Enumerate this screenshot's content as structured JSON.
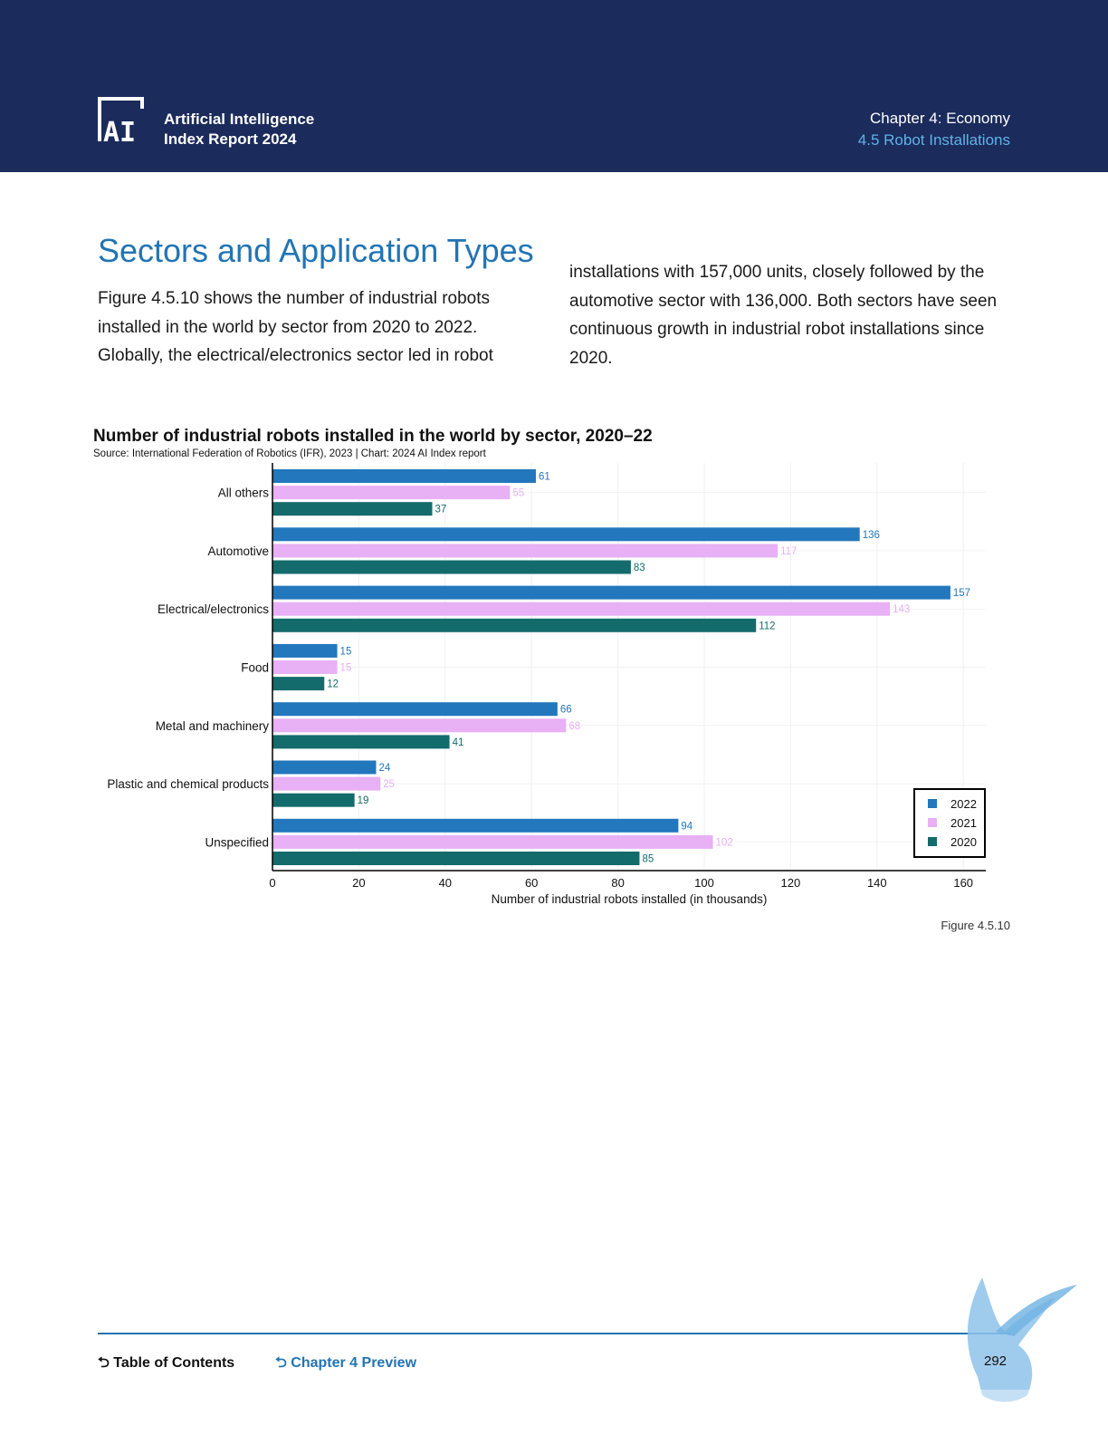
{
  "header": {
    "report_title_line1": "Artificial Intelligence",
    "report_title_line2": "Index Report 2024",
    "chapter": "Chapter 4: Economy",
    "section": "4.5 Robot Installations",
    "logo_text": "AI"
  },
  "section": {
    "title": "Sectors and Application Types",
    "paragraph_left": "Figure 4.5.10 shows the number of industrial robots installed in the world by sector from 2020 to 2022. Globally, the electrical/electronics sector led in robot",
    "paragraph_right": "installations with 157,000 units, closely followed by the automotive sector with 136,000. Both sectors have seen continuous growth in industrial robot installations since 2020."
  },
  "chart_data": {
    "type": "bar",
    "orientation": "horizontal",
    "title": "Number of industrial robots installed in the world by sector, 2020–22",
    "source": "Source: International Federation of Robotics (IFR), 2023 | Chart: 2024 AI Index report",
    "xlabel": "Number of industrial robots installed (in thousands)",
    "ylabel": "",
    "xlim": [
      0,
      165
    ],
    "xticks": [
      0,
      20,
      40,
      60,
      80,
      100,
      120,
      140,
      160
    ],
    "categories": [
      "All others",
      "Automotive",
      "Electrical/electronics",
      "Food",
      "Metal and machinery",
      "Plastic and chemical products",
      "Unspecified"
    ],
    "series": [
      {
        "name": "2022",
        "color": "#2277bd",
        "values": [
          61,
          136,
          157,
          15,
          66,
          24,
          94
        ]
      },
      {
        "name": "2021",
        "color": "#e8b0f5",
        "values": [
          55,
          117,
          143,
          15,
          68,
          25,
          102
        ]
      },
      {
        "name": "2020",
        "color": "#146b6b",
        "values": [
          37,
          83,
          112,
          12,
          41,
          19,
          85
        ]
      }
    ],
    "grid": true,
    "legend_position": "bottom-right"
  },
  "figure_label": "Figure 4.5.10",
  "footer": {
    "toc_icon": "return-arrow-icon",
    "toc_label": "Table of Contents",
    "chapter_preview_icon": "return-arrow-icon",
    "chapter_preview_label": "Chapter 4 Preview",
    "page_number": "292"
  }
}
